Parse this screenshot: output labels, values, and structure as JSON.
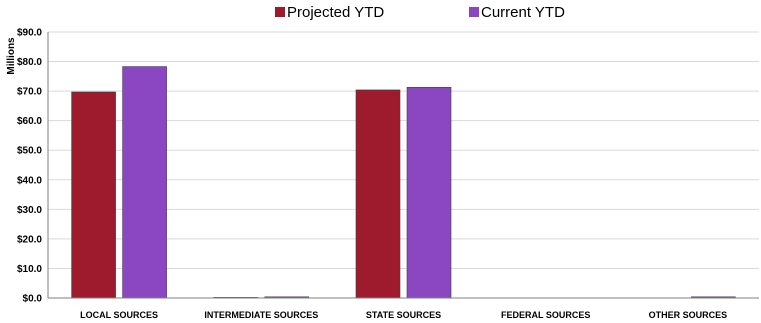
{
  "chart_data": {
    "type": "bar",
    "title": "",
    "xlabel": "",
    "ylabel": "Millions",
    "ylim": [
      0,
      90
    ],
    "ytick_step": 10,
    "ytick_labels": [
      "$0.0",
      "$10.0",
      "$20.0",
      "$30.0",
      "$40.0",
      "$50.0",
      "$60.0",
      "$70.0",
      "$80.0",
      "$90.0"
    ],
    "categories": [
      "LOCAL SOURCES",
      "INTERMEDIATE SOURCES",
      "STATE SOURCES",
      "FEDERAL SOURCES",
      "OTHER SOURCES"
    ],
    "series": [
      {
        "name": "Projected YTD",
        "color": "#9e1a2d",
        "values": [
          69.7,
          0.2,
          70.4,
          0.0,
          0.0
        ]
      },
      {
        "name": "Current YTD",
        "color": "#8b46c1",
        "values": [
          78.3,
          0.4,
          71.3,
          0.0,
          0.4
        ]
      }
    ],
    "grid": {
      "y": true,
      "x": false
    },
    "legend": {
      "placement": "top-center"
    }
  }
}
